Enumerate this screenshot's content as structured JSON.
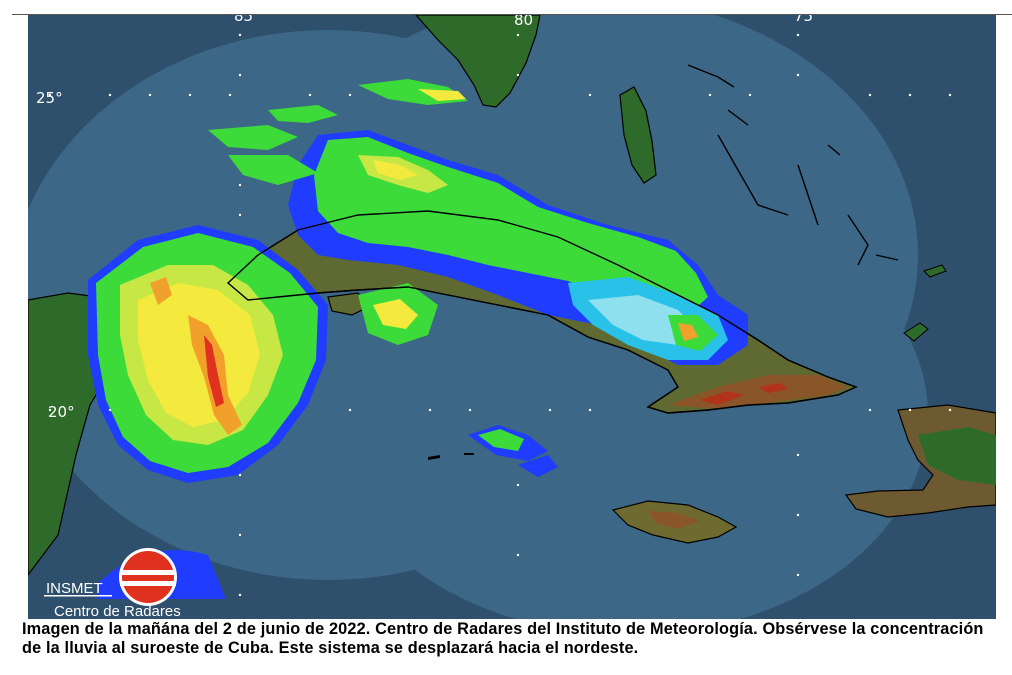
{
  "map": {
    "lat_labels": [
      "25°",
      "20°"
    ],
    "lon_labels": [
      "85",
      "80",
      "75"
    ],
    "colors": {
      "ocean_outside": "#2f506c",
      "radar_coverage": "#3c6787",
      "land_green": "#2e6b2a",
      "terrain_brown": "#7d5a2c",
      "rain_light": "#3ddb3a",
      "rain_moderate": "#f3ea3d",
      "rain_heavy": "#f1a12b",
      "rain_intense": "#e0301e",
      "rain_weak": "#1f3cff",
      "rain_cyan": "#2ac1e9"
    }
  },
  "logo": {
    "org": "INSMET",
    "subtitle": "Centro de Radares",
    "icon": "insmet-radar-logo"
  },
  "caption": "Imagen de la mañána del 2 de junio de 2022. Centro de Radares del Instituto de Meteorología. Obsérvese la concentración de la lluvia al suroeste de Cuba. Este sistema se desplazará hacia el nordeste."
}
